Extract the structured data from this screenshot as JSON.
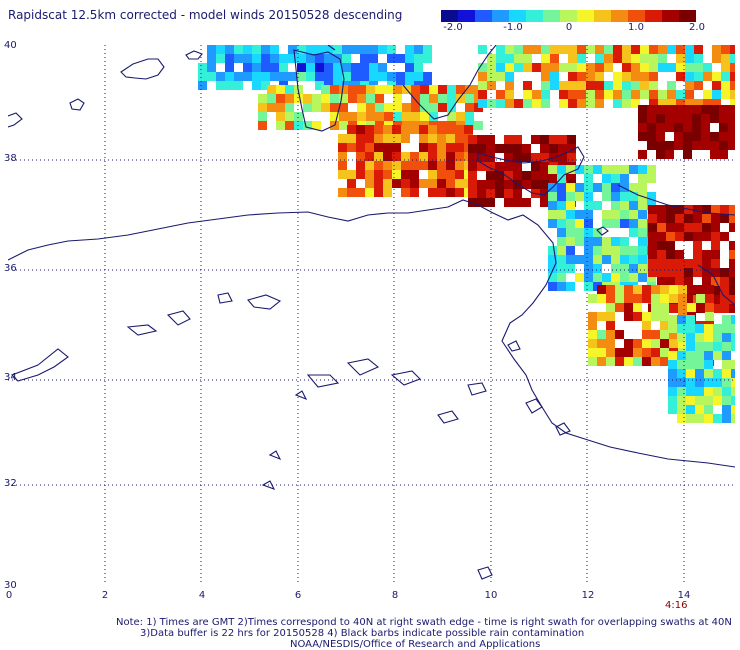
{
  "title": "Rapidscat 12.5km corrected - model winds 20150528 descending",
  "colorbar": {
    "ticks": [
      "-2.0",
      "-1.0",
      "0",
      "1.0",
      "2.0"
    ],
    "colors": [
      "#0b0b8f",
      "#1111d8",
      "#1e5cff",
      "#1f9bff",
      "#19d8ff",
      "#34f0d8",
      "#74f59a",
      "#b9f55c",
      "#f5f52a",
      "#f5c31b",
      "#f58c12",
      "#f04f0c",
      "#d91a06",
      "#a50000",
      "#7a0000"
    ]
  },
  "map": {
    "lat_labels": [
      "40",
      "38",
      "36",
      "34",
      "32",
      "30"
    ],
    "lon_labels": [
      "0",
      "2",
      "4",
      "6",
      "8",
      "10",
      "12",
      "14"
    ],
    "coast_color": "#1a1a6e",
    "grid_color": "#1a1a6e"
  },
  "time_label": "4:16",
  "notes": [
    "Note: 1) Times are GMT 2)Times correspond to 40N at right swath edge - time is right swath for overlapping swaths at 40N",
    "3)Data buffer is 22 hrs for 20150528 4) Black barbs indicate possible rain contamination",
    "NOAA/NESDIS/Office of Research and Applications"
  ]
}
